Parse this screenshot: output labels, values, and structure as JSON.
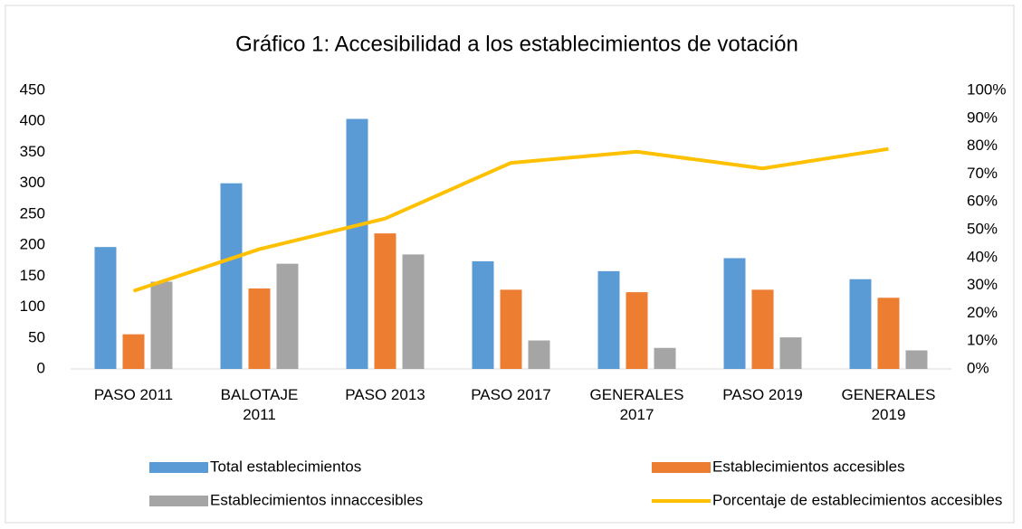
{
  "chart_data": {
    "type": "bar",
    "title": "Gráfico 1: Accesibilidad a los establecimientos de votación",
    "categories": [
      "PASO 2011",
      "BALOTAJE 2011",
      "PASO 2013",
      "PASO 2017",
      "GENERALES 2017",
      "PASO 2019",
      "GENERALES 2019"
    ],
    "series": [
      {
        "name": "Total establecimientos",
        "type": "bar",
        "color": "#5b9bd5",
        "values": [
          197,
          300,
          404,
          174,
          158,
          179,
          145
        ]
      },
      {
        "name": "Establecimientos accesibles",
        "type": "bar",
        "color": "#ed7d31",
        "values": [
          56,
          130,
          219,
          128,
          124,
          128,
          115
        ]
      },
      {
        "name": "Establecimientos innaccesibles",
        "type": "bar",
        "color": "#a5a5a5",
        "values": [
          141,
          170,
          185,
          46,
          34,
          51,
          30
        ]
      },
      {
        "name": "Porcentaje de establecimientos accesibles",
        "type": "line",
        "axis": "y2",
        "color": "#ffc000",
        "values": [
          28,
          43,
          54,
          74,
          78,
          72,
          79
        ]
      }
    ],
    "ylim": [
      0,
      450
    ],
    "yticks": [
      0,
      50,
      100,
      150,
      200,
      250,
      300,
      350,
      400,
      450
    ],
    "y2lim": [
      0,
      100
    ],
    "y2ticks": [
      {
        "value": 0,
        "label": "0%"
      },
      {
        "value": 10,
        "label": "10%"
      },
      {
        "value": 20,
        "label": "20%"
      },
      {
        "value": 30,
        "label": "30%"
      },
      {
        "value": 40,
        "label": "40%"
      },
      {
        "value": 50,
        "label": "50%"
      },
      {
        "value": 60,
        "label": "60%"
      },
      {
        "value": 70,
        "label": "70%"
      },
      {
        "value": 80,
        "label": "80%"
      },
      {
        "value": 90,
        "label": "90%"
      },
      {
        "value": 100,
        "label": "100%"
      }
    ],
    "grid": false,
    "legend": "bottom"
  }
}
